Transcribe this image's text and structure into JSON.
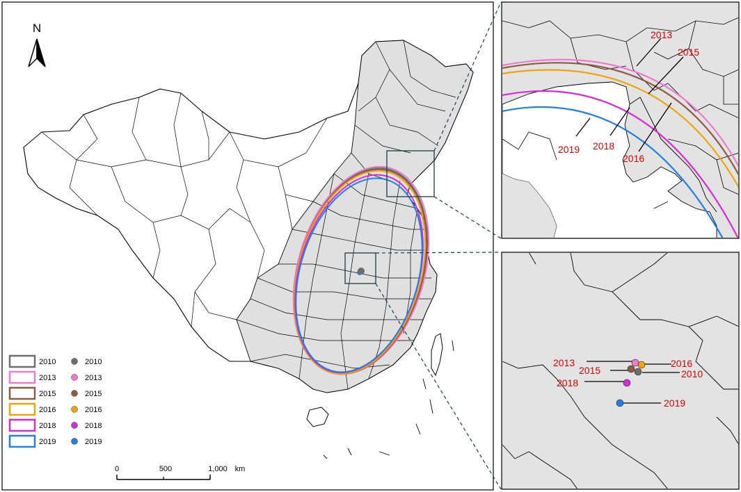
{
  "north_label": "N",
  "scale_bar": {
    "ticks": [
      "0",
      "500",
      "1,000"
    ],
    "unit": "km"
  },
  "colors": {
    "2010": "#6d6d6d",
    "2013": "#f07ad2",
    "2015": "#8f5a44",
    "2016": "#f0a30a",
    "2018": "#d92ad9",
    "2019": "#1f7fe6",
    "shaded_region": "#e0e0e0",
    "inset_background": "#e3e3e3",
    "callout_text": "#e00000"
  },
  "legend": {
    "ellipse_items": [
      {
        "year": "2010",
        "color_key": "2010"
      },
      {
        "year": "2013",
        "color_key": "2013"
      },
      {
        "year": "2015",
        "color_key": "2015"
      },
      {
        "year": "2016",
        "color_key": "2016"
      },
      {
        "year": "2018",
        "color_key": "2018"
      },
      {
        "year": "2019",
        "color_key": "2019"
      }
    ],
    "center_items": [
      {
        "year": "2010",
        "color_key": "2010"
      },
      {
        "year": "2013",
        "color_key": "2013"
      },
      {
        "year": "2015",
        "color_key": "2015"
      },
      {
        "year": "2016",
        "color_key": "2016"
      },
      {
        "year": "2018",
        "color_key": "2018"
      },
      {
        "year": "2019",
        "color_key": "2019"
      }
    ]
  },
  "inset_top": {
    "callouts": [
      "2013",
      "2015",
      "2018",
      "2019",
      "2016"
    ]
  },
  "inset_bottom": {
    "callouts": [
      "2013",
      "2016",
      "2015",
      "2010",
      "2018",
      "2019"
    ]
  }
}
